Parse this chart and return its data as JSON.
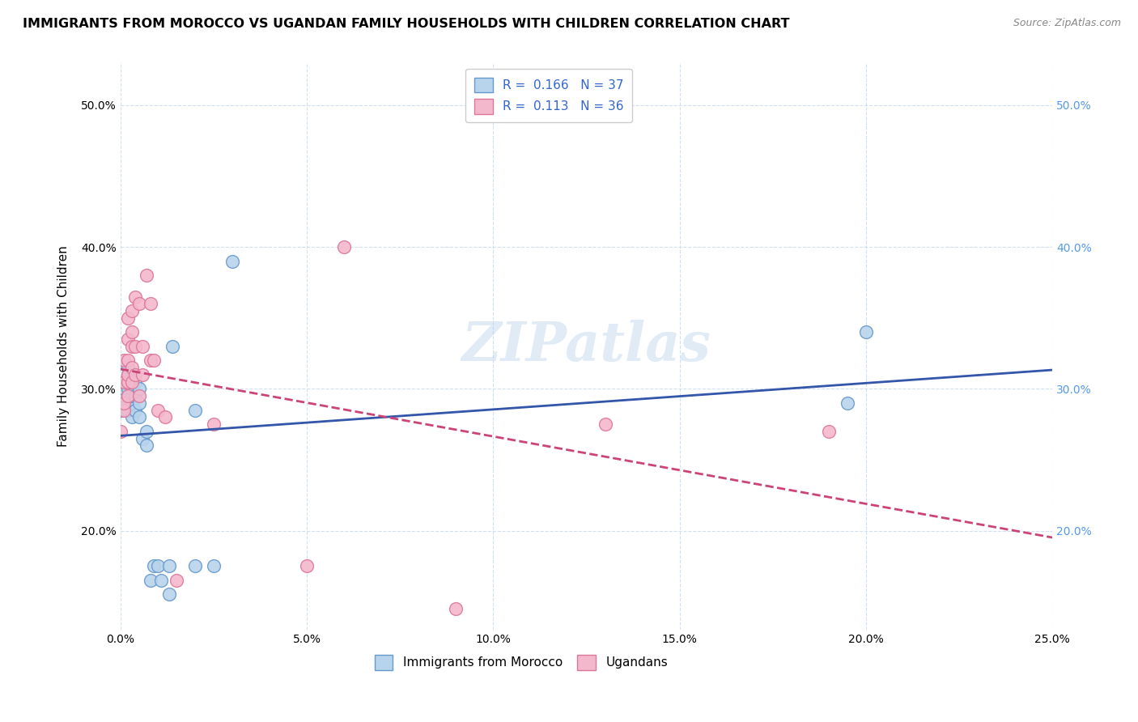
{
  "title": "IMMIGRANTS FROM MOROCCO VS UGANDAN FAMILY HOUSEHOLDS WITH CHILDREN CORRELATION CHART",
  "source": "Source: ZipAtlas.com",
  "ylabel": "Family Households with Children",
  "watermark": "ZIPatlas",
  "bottom_legend": [
    "Immigrants from Morocco",
    "Ugandans"
  ],
  "xlim": [
    0.0,
    0.25
  ],
  "ylim": [
    0.13,
    0.53
  ],
  "morocco_color": "#b8d4ec",
  "morocco_edge": "#6699cc",
  "ugandan_color": "#f4b8cc",
  "ugandan_edge": "#dd7799",
  "trendline_morocco": "#3355aa",
  "trendline_ugandan": "#cc4477",
  "right_yaxis_color": "#5599ee",
  "morocco_x": [
    0.0,
    0.001,
    0.001,
    0.001,
    0.002,
    0.002,
    0.002,
    0.002,
    0.002,
    0.002,
    0.003,
    0.003,
    0.003,
    0.003,
    0.003,
    0.004,
    0.004,
    0.004,
    0.005,
    0.005,
    0.005,
    0.006,
    0.007,
    0.007,
    0.008,
    0.009,
    0.01,
    0.011,
    0.013,
    0.013,
    0.014,
    0.02,
    0.02,
    0.025,
    0.03,
    0.195,
    0.2
  ],
  "morocco_y": [
    0.285,
    0.29,
    0.295,
    0.3,
    0.285,
    0.295,
    0.3,
    0.305,
    0.31,
    0.315,
    0.28,
    0.29,
    0.295,
    0.3,
    0.305,
    0.285,
    0.295,
    0.305,
    0.28,
    0.29,
    0.3,
    0.265,
    0.26,
    0.27,
    0.165,
    0.175,
    0.175,
    0.165,
    0.175,
    0.155,
    0.33,
    0.175,
    0.285,
    0.175,
    0.39,
    0.29,
    0.34
  ],
  "ugandan_x": [
    0.0,
    0.001,
    0.001,
    0.001,
    0.001,
    0.002,
    0.002,
    0.002,
    0.002,
    0.002,
    0.002,
    0.003,
    0.003,
    0.003,
    0.003,
    0.003,
    0.004,
    0.004,
    0.004,
    0.005,
    0.005,
    0.006,
    0.006,
    0.007,
    0.008,
    0.008,
    0.009,
    0.01,
    0.012,
    0.015,
    0.025,
    0.05,
    0.06,
    0.09,
    0.13,
    0.19
  ],
  "ugandan_y": [
    0.27,
    0.285,
    0.29,
    0.305,
    0.32,
    0.295,
    0.305,
    0.31,
    0.32,
    0.335,
    0.35,
    0.305,
    0.315,
    0.33,
    0.34,
    0.355,
    0.31,
    0.33,
    0.365,
    0.295,
    0.36,
    0.31,
    0.33,
    0.38,
    0.32,
    0.36,
    0.32,
    0.285,
    0.28,
    0.165,
    0.275,
    0.175,
    0.4,
    0.145,
    0.275,
    0.27
  ]
}
